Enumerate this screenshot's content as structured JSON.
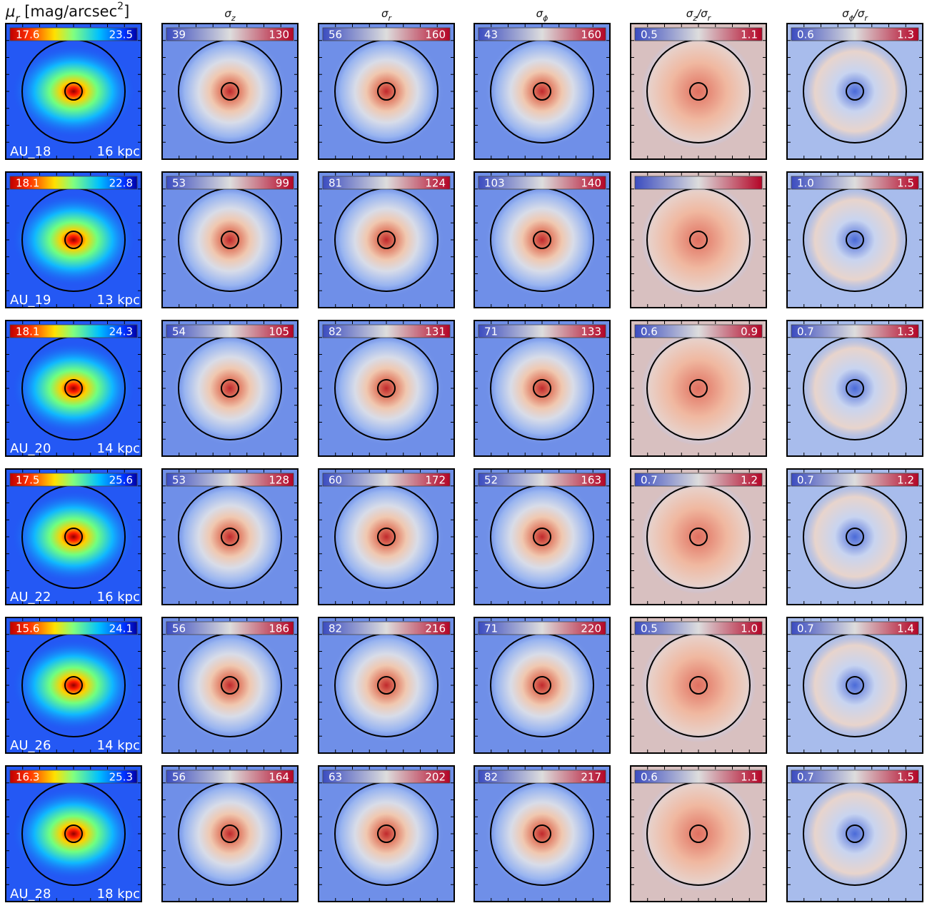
{
  "column_headers": [
    [
      {
        "text": "μ"
      },
      {
        "sub": "r"
      },
      {
        "text": " [mag/arcsec"
      },
      {
        "sup": "2"
      },
      {
        "text": "]"
      }
    ],
    [
      {
        "text": "σ"
      },
      {
        "sub": "z"
      }
    ],
    [
      {
        "text": "σ"
      },
      {
        "sub": "r"
      }
    ],
    [
      {
        "text": "σ"
      },
      {
        "sub": "ϕ"
      }
    ],
    [
      {
        "text": "σ"
      },
      {
        "sub": "z"
      },
      {
        "text": "/σ"
      },
      {
        "sub": "r"
      }
    ],
    [
      {
        "text": "σ"
      },
      {
        "sub": "ϕ"
      },
      {
        "text": "/σ"
      },
      {
        "sub": "r"
      }
    ]
  ],
  "rows": [
    {
      "name": "AU_18",
      "scale": "16 kpc",
      "colorbars": [
        [
          "17.6",
          "23.5"
        ],
        [
          "39",
          "130"
        ],
        [
          "56",
          "160"
        ],
        [
          "43",
          "160"
        ],
        [
          "0.5",
          "1.1"
        ],
        [
          "0.6",
          "1.3"
        ]
      ]
    },
    {
      "name": "AU_19",
      "scale": "13 kpc",
      "colorbars": [
        [
          "18.1",
          "22.8"
        ],
        [
          "53",
          "99"
        ],
        [
          "81",
          "124"
        ],
        [
          "103",
          "140"
        ],
        [],
        [
          "1.0",
          "1.5"
        ]
      ]
    },
    {
      "name": "AU_20",
      "scale": "14 kpc",
      "colorbars": [
        [
          "18.1",
          "24.3"
        ],
        [
          "54",
          "105"
        ],
        [
          "82",
          "131"
        ],
        [
          "71",
          "133"
        ],
        [
          "0.6",
          "0.9"
        ],
        [
          "0.7",
          "1.3"
        ]
      ]
    },
    {
      "name": "AU_22",
      "scale": "16 kpc",
      "colorbars": [
        [
          "17.5",
          "25.6"
        ],
        [
          "53",
          "128"
        ],
        [
          "60",
          "172"
        ],
        [
          "52",
          "163"
        ],
        [
          "0.7",
          "1.2"
        ],
        [
          "0.7",
          "1.2"
        ]
      ]
    },
    {
      "name": "AU_26",
      "scale": "14 kpc",
      "colorbars": [
        [
          "15.6",
          "24.1"
        ],
        [
          "56",
          "186"
        ],
        [
          "82",
          "216"
        ],
        [
          "71",
          "220"
        ],
        [
          "0.5",
          "1.0"
        ],
        [
          "0.7",
          "1.4"
        ]
      ]
    },
    {
      "name": "AU_28",
      "scale": "18 kpc",
      "colorbars": [
        [
          "16.3",
          "25.3"
        ],
        [
          "56",
          "164"
        ],
        [
          "63",
          "202"
        ],
        [
          "82",
          "217"
        ],
        [
          "0.6",
          "1.1"
        ],
        [
          "0.7",
          "1.5"
        ]
      ]
    }
  ]
}
